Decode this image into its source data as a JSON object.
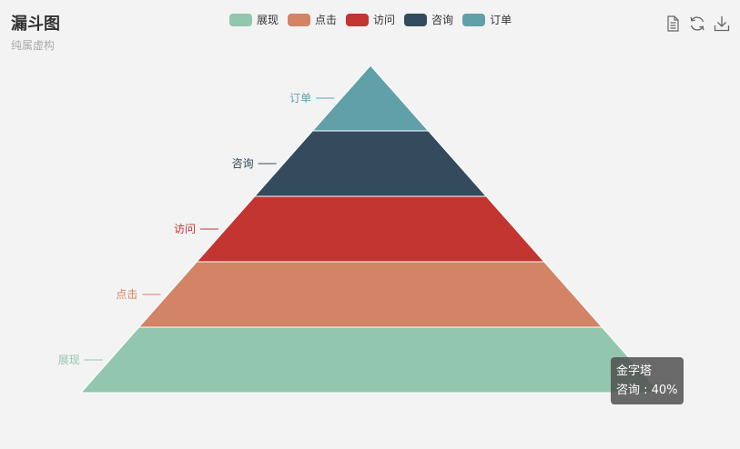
{
  "chart_data": {
    "type": "funnel",
    "title": "漏斗图",
    "subtitle": "纯属虚构",
    "legend": [
      "展现",
      "点击",
      "访问",
      "咨询",
      "订单"
    ],
    "series_name": "金字塔",
    "sort": "ascending",
    "max": 100,
    "data": [
      {
        "name": "展现",
        "value": 100,
        "color": "#93c6ae"
      },
      {
        "name": "点击",
        "value": 80,
        "color": "#d38366"
      },
      {
        "name": "访问",
        "value": 60,
        "color": "#c23531"
      },
      {
        "name": "咨询",
        "value": 40,
        "color": "#334b5c"
      },
      {
        "name": "订单",
        "value": 20,
        "color": "#61a0a8"
      }
    ]
  },
  "tooltip": {
    "series": "金字塔",
    "item": "咨询 : 40%"
  },
  "toolbox": {
    "icons": [
      "data-view-icon",
      "restore-icon",
      "save-image-icon"
    ],
    "color": "#666666"
  }
}
